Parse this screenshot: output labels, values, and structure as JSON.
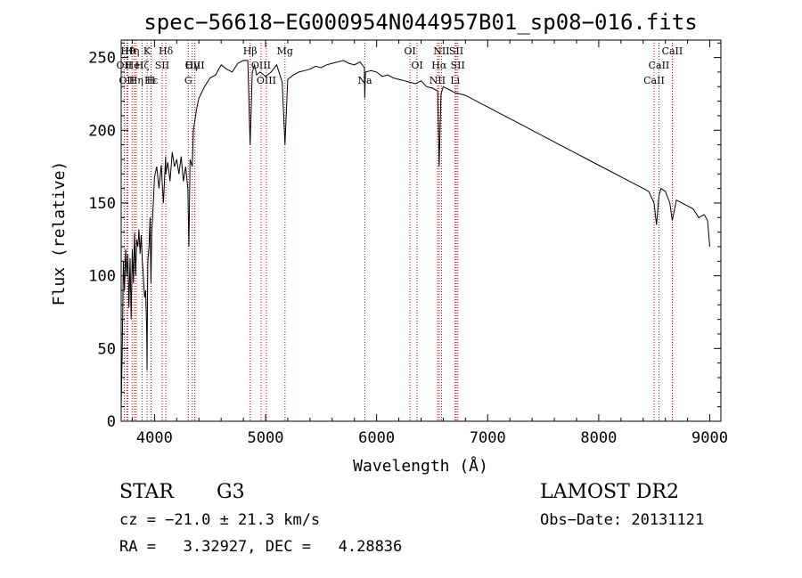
{
  "chart_data": {
    "type": "line",
    "title": "spec−56618−EG000954N044957B01_sp08−016.fits",
    "xlabel": "Wavelength (Å)",
    "ylabel": "Flux (relative)",
    "xlim": [
      3700,
      9100
    ],
    "ylim": [
      0,
      262
    ],
    "xticks": [
      4000,
      5000,
      6000,
      7000,
      8000,
      9000
    ],
    "yticks": [
      0,
      50,
      100,
      150,
      200,
      250
    ],
    "grid": false,
    "series": [
      {
        "color": "#000000",
        "x": [
          3700,
          3710,
          3720,
          3730,
          3740,
          3750,
          3760,
          3770,
          3780,
          3790,
          3800,
          3810,
          3820,
          3830,
          3840,
          3850,
          3860,
          3870,
          3880,
          3890,
          3900,
          3910,
          3920,
          3930,
          3933,
          3940,
          3950,
          3960,
          3968,
          3975,
          3990,
          4000,
          4020,
          4040,
          4060,
          4080,
          4100,
          4102,
          4120,
          4140,
          4160,
          4180,
          4200,
          4220,
          4240,
          4260,
          4280,
          4300,
          4310,
          4320,
          4340,
          4350,
          4360,
          4380,
          4400,
          4450,
          4500,
          4550,
          4600,
          4650,
          4700,
          4750,
          4800,
          4840,
          4861,
          4880,
          4900,
          4920,
          4950,
          5000,
          5050,
          5100,
          5150,
          5175,
          5200,
          5250,
          5300,
          5350,
          5400,
          5450,
          5500,
          5550,
          5600,
          5650,
          5700,
          5750,
          5800,
          5850,
          5890,
          5893,
          5900,
          5950,
          6000,
          6050,
          6100,
          6150,
          6200,
          6250,
          6300,
          6350,
          6400,
          6450,
          6500,
          6550,
          6563,
          6580,
          6600,
          6650,
          6700,
          6750,
          6800,
          6850,
          6900,
          6950,
          7000,
          7100,
          7200,
          7300,
          7400,
          7500,
          7600,
          7700,
          7800,
          7900,
          8000,
          8100,
          8200,
          8300,
          8400,
          8450,
          8498,
          8520,
          8542,
          8560,
          8600,
          8640,
          8662,
          8700,
          8750,
          8800,
          8850,
          8900,
          8950,
          8980,
          9000
        ],
        "values": [
          10,
          50,
          110,
          90,
          118,
          100,
          115,
          78,
          112,
          70,
          118,
          95,
          130,
          100,
          125,
          120,
          132,
          115,
          128,
          110,
          100,
          85,
          90,
          60,
          35,
          110,
          120,
          140,
          95,
          130,
          150,
          168,
          175,
          160,
          176,
          150,
          182,
          170,
          178,
          165,
          185,
          175,
          180,
          170,
          182,
          165,
          175,
          160,
          120,
          180,
          175,
          200,
          205,
          215,
          222,
          230,
          236,
          238,
          245,
          242,
          240,
          246,
          248,
          248,
          190,
          240,
          245,
          238,
          240,
          237,
          240,
          245,
          233,
          190,
          235,
          238,
          240,
          241,
          242,
          244,
          243,
          245,
          246,
          247,
          248,
          246,
          245,
          247,
          243,
          222,
          240,
          241,
          240,
          237,
          238,
          236,
          235,
          234,
          233,
          232,
          234,
          230,
          229,
          227,
          175,
          225,
          230,
          228,
          226,
          225,
          224,
          222,
          220,
          218,
          216,
          212,
          208,
          204,
          200,
          196,
          192,
          188,
          184,
          180,
          176,
          172,
          168,
          164,
          160,
          158,
          150,
          135,
          155,
          160,
          158,
          150,
          138,
          152,
          150,
          148,
          146,
          140,
          142,
          138,
          120
        ]
      }
    ],
    "line_markers": [
      {
        "wl": 3727,
        "label": "OII",
        "row": 1
      },
      {
        "wl": 3750,
        "label": "OII",
        "row": 2
      },
      {
        "wl": 3760,
        "label": "Hθ",
        "row": 0
      },
      {
        "wl": 3798,
        "label": "Hη",
        "row": 0
      },
      {
        "wl": 3820,
        "label": "HeI",
        "row": 1
      },
      {
        "wl": 3835,
        "label": "Hη",
        "row": 2
      },
      {
        "wl": 3889,
        "label": "Hζ",
        "row": 1
      },
      {
        "wl": 3933,
        "label": "K",
        "row": 0
      },
      {
        "wl": 3968,
        "label": "H",
        "row": 2
      },
      {
        "wl": 3970,
        "label": "Hε",
        "row": 2
      },
      {
        "wl": 4069,
        "label": "SII",
        "row": 1
      },
      {
        "wl": 4102,
        "label": "Hδ",
        "row": 0
      },
      {
        "wl": 4304,
        "label": "G",
        "row": 2
      },
      {
        "wl": 4340,
        "label": "Hγ",
        "row": 1
      },
      {
        "wl": 4363,
        "label": "OIII",
        "row": 1
      },
      {
        "wl": 4861,
        "label": "Hβ",
        "row": 0
      },
      {
        "wl": 4959,
        "label": "OIII",
        "row": 1
      },
      {
        "wl": 5007,
        "label": "OIII",
        "row": 2
      },
      {
        "wl": 5175,
        "label": "Mg",
        "row": 0
      },
      {
        "wl": 5894,
        "label": "Na",
        "row": 2
      },
      {
        "wl": 6300,
        "label": "OI",
        "row": 0
      },
      {
        "wl": 6364,
        "label": "OI",
        "row": 1
      },
      {
        "wl": 6548,
        "label": "NII",
        "row": 2
      },
      {
        "wl": 6563,
        "label": "Hα",
        "row": 1
      },
      {
        "wl": 6584,
        "label": "NII",
        "row": 0
      },
      {
        "wl": 6707,
        "label": "Li",
        "row": 2
      },
      {
        "wl": 6717,
        "label": "SII",
        "row": 0
      },
      {
        "wl": 6731,
        "label": "SII",
        "row": 1
      },
      {
        "wl": 8498,
        "label": "CaII",
        "row": 2
      },
      {
        "wl": 8542,
        "label": "CaII",
        "row": 1
      },
      {
        "wl": 8662,
        "label": "CaII",
        "row": 0
      }
    ]
  },
  "info": {
    "class": "STAR",
    "subclass": "G3",
    "survey": "LAMOST DR2",
    "cz": "cz = −21.0 ± 21.3 km/s",
    "obs_date": "Obs−Date: 20131121",
    "coords": "RA =   3.32927, DEC =   4.28836"
  }
}
